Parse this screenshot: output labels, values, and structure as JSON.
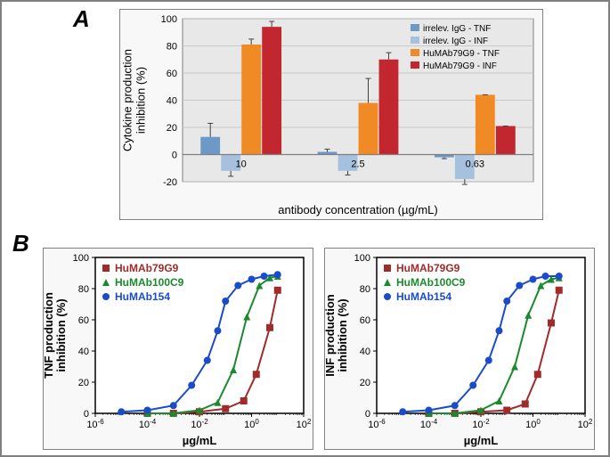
{
  "panel_labels": {
    "A": "A",
    "B": "B"
  },
  "bar_chart": {
    "type": "bar",
    "title_y": "Cytokine production\ninhibition (%)",
    "title_x": "antibody concentration (µg/mL)",
    "label_fontsize": 13,
    "tick_fontsize": 11,
    "ylim": [
      -20,
      100
    ],
    "ytick_step": 20,
    "categories": [
      "10",
      "2.5",
      "0.63"
    ],
    "series": [
      {
        "name": "irrelev. IgG - TNF",
        "color": "#6c99c6",
        "values": [
          13,
          2,
          -2
        ],
        "err": [
          10,
          2,
          1
        ]
      },
      {
        "name": "irrelev. IgG - INF",
        "color": "#a6c1de",
        "values": [
          -12,
          -12,
          -18
        ],
        "err": [
          4,
          3,
          4
        ]
      },
      {
        "name": "HuMAb79G9 - TNF",
        "color": "#ef8a24",
        "values": [
          81,
          38,
          44
        ],
        "err": [
          4,
          18,
          0
        ]
      },
      {
        "name": "HuMAb79G9 - INF",
        "color": "#c2262e",
        "values": [
          94,
          70,
          21
        ],
        "err": [
          4,
          5,
          0
        ]
      }
    ],
    "legend_fontsize": 10,
    "grid_color": "#bfbfbf",
    "bg_color": "#e8e8e8",
    "frame_color": "#808080",
    "bar_gap": 0.05,
    "group_gap": 0.3,
    "error_cap": 3
  },
  "line_charts": {
    "common": {
      "title_x": "µg/mL",
      "label_fontsize": 13,
      "tick_fontsize": 11,
      "ylim": [
        0,
        100
      ],
      "yticks": [
        0,
        20,
        40,
        60,
        80,
        100
      ],
      "xscale": "log",
      "xlim_exp": [
        -6,
        2
      ],
      "xticks_exp": [
        -6,
        -4,
        -2,
        0,
        2
      ],
      "series": [
        {
          "name": "HuMAb79G9",
          "color": "#a02b2b",
          "marker": "square"
        },
        {
          "name": "HuMAb100C9",
          "color": "#1a8a2e",
          "marker": "triangle"
        },
        {
          "name": "HuMAb154",
          "color": "#1a4cc9",
          "marker": "circle"
        }
      ],
      "legend_fontsize": 12,
      "frame_color": "#000000",
      "bg_color": "#ffffff",
      "line_width": 2,
      "marker_size": 4
    },
    "left": {
      "title_y": "TNF production\ninhibition (%)",
      "data": {
        "HuMAb79G9": [
          [
            -4,
            0
          ],
          [
            -3,
            0
          ],
          [
            -2,
            1
          ],
          [
            -1,
            3
          ],
          [
            -0.3,
            8
          ],
          [
            0.18,
            25
          ],
          [
            0.7,
            55
          ],
          [
            1,
            79
          ]
        ],
        "HuMAb100C9": [
          [
            -4,
            0
          ],
          [
            -3,
            0
          ],
          [
            -2,
            2
          ],
          [
            -1.3,
            7
          ],
          [
            -0.7,
            28
          ],
          [
            -0.18,
            62
          ],
          [
            0.3,
            82
          ],
          [
            0.7,
            87
          ],
          [
            1,
            88
          ]
        ],
        "HuMAb154": [
          [
            -5,
            1
          ],
          [
            -4,
            2
          ],
          [
            -3,
            5
          ],
          [
            -2.3,
            18
          ],
          [
            -1.7,
            34
          ],
          [
            -1.3,
            53
          ],
          [
            -1,
            72
          ],
          [
            -0.52,
            82
          ],
          [
            0,
            86
          ],
          [
            0.48,
            88
          ],
          [
            1,
            89
          ]
        ]
      }
    },
    "right": {
      "title_y": "INF production\ninhibition (%)",
      "data": {
        "HuMAb79G9": [
          [
            -4,
            0
          ],
          [
            -3,
            0
          ],
          [
            -2,
            1
          ],
          [
            -1,
            2
          ],
          [
            -0.3,
            6
          ],
          [
            0.18,
            25
          ],
          [
            0.7,
            58
          ],
          [
            1,
            79
          ]
        ],
        "HuMAb100C9": [
          [
            -4,
            0
          ],
          [
            -3,
            0
          ],
          [
            -2,
            2
          ],
          [
            -1.3,
            8
          ],
          [
            -0.7,
            30
          ],
          [
            -0.18,
            63
          ],
          [
            0.3,
            82
          ],
          [
            0.7,
            86
          ],
          [
            1,
            87
          ]
        ],
        "HuMAb154": [
          [
            -5,
            1
          ],
          [
            -4,
            2
          ],
          [
            -3,
            5
          ],
          [
            -2.3,
            18
          ],
          [
            -1.7,
            34
          ],
          [
            -1.3,
            53
          ],
          [
            -1,
            72
          ],
          [
            -0.52,
            82
          ],
          [
            0,
            86
          ],
          [
            0.48,
            88
          ],
          [
            1,
            88
          ]
        ]
      }
    }
  }
}
